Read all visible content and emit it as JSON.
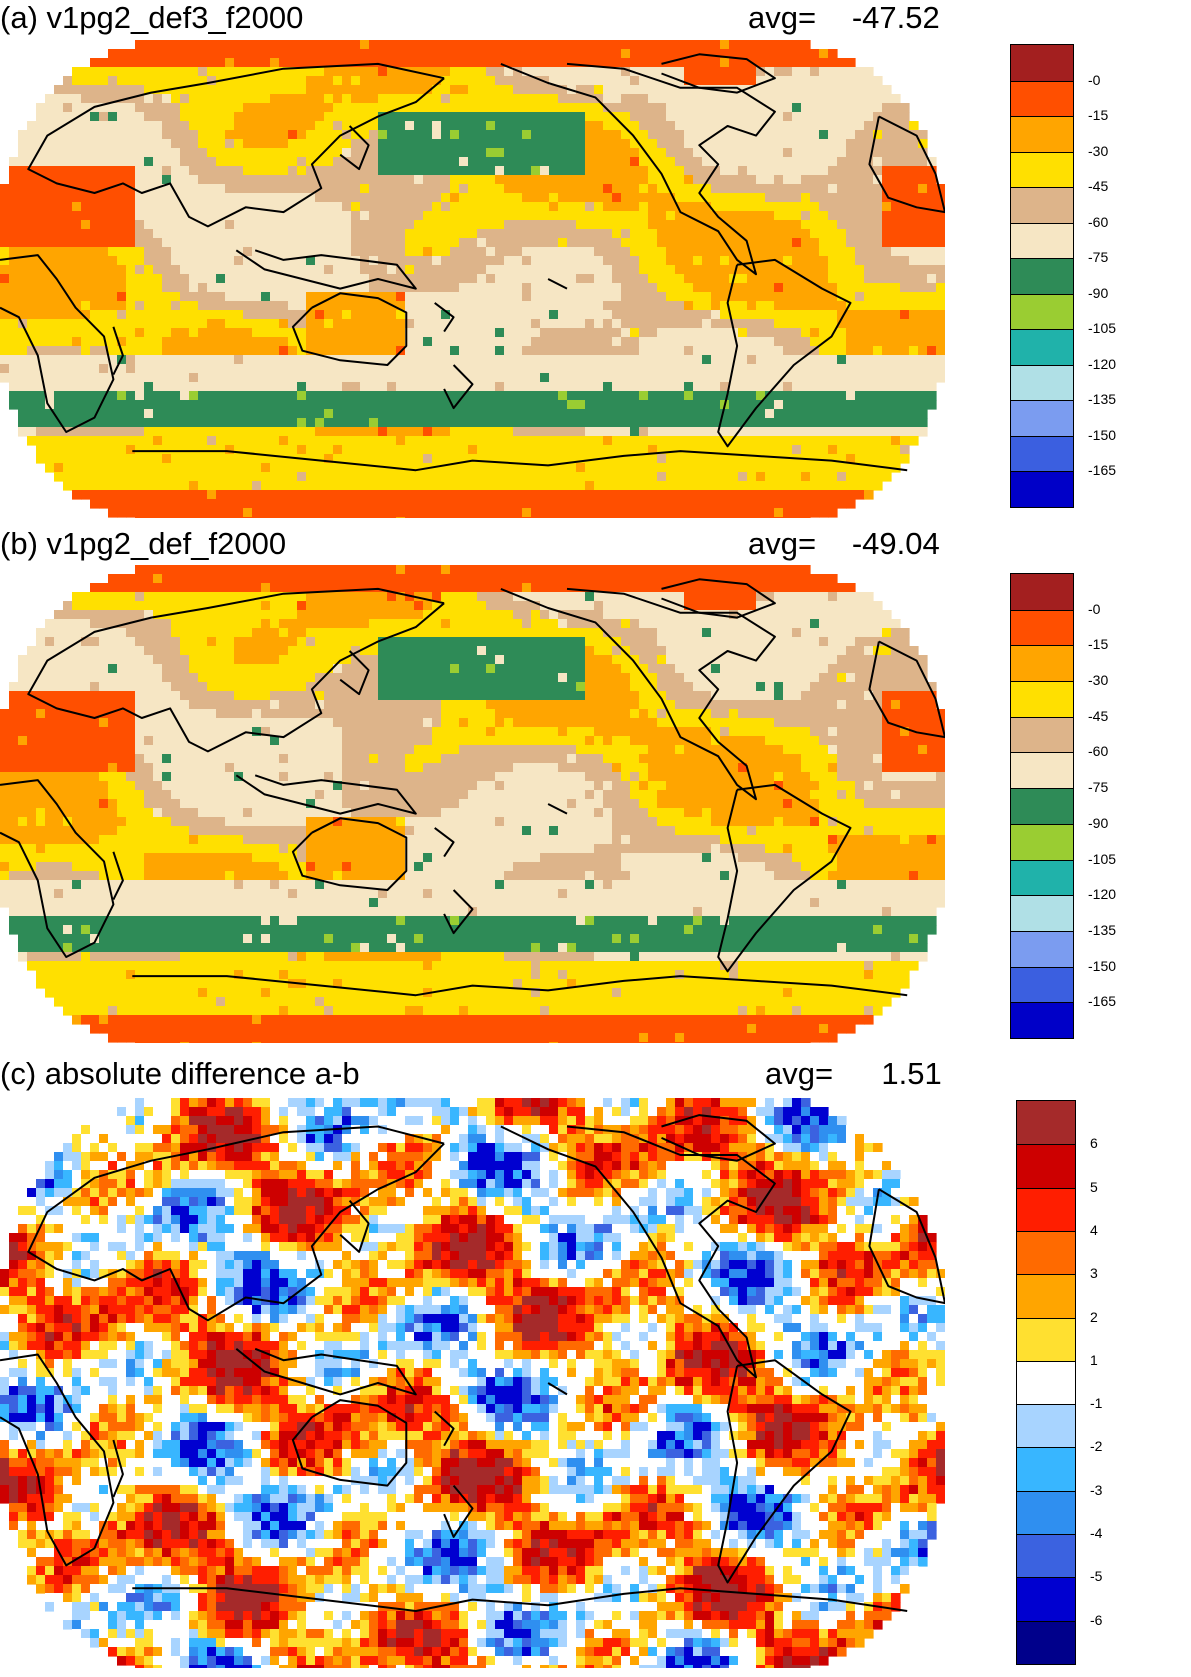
{
  "panels": [
    {
      "id": "a",
      "title": "(a) v1pg2_def3_f2000",
      "avg_label": "avg=",
      "avg_value": "-47.52",
      "palette": [
        "#a31f1f",
        "#ff4f00",
        "#ffa500",
        "#ffe000",
        "#ddb48a",
        "#f6e6c4",
        "#2e8b57",
        "#9acd32",
        "#20b2aa",
        "#b0e0e6",
        "#7b9cf0",
        "#3b5fe0",
        "#0000c8"
      ],
      "level_labels": [
        "-0",
        "-15",
        "-30",
        "-45",
        "-60",
        "-75",
        "-90",
        "-105",
        "-120",
        "-135",
        "-150",
        "-165"
      ]
    },
    {
      "id": "b",
      "title": "(b) v1pg2_def_f2000",
      "avg_label": "avg=",
      "avg_value": "-49.04",
      "palette": [
        "#a31f1f",
        "#ff4f00",
        "#ffa500",
        "#ffe000",
        "#ddb48a",
        "#f6e6c4",
        "#2e8b57",
        "#9acd32",
        "#20b2aa",
        "#b0e0e6",
        "#7b9cf0",
        "#3b5fe0",
        "#0000c8"
      ],
      "level_labels": [
        "-0",
        "-15",
        "-30",
        "-45",
        "-60",
        "-75",
        "-90",
        "-105",
        "-120",
        "-135",
        "-150",
        "-165"
      ]
    },
    {
      "id": "c",
      "title": "(c) absolute difference a-b",
      "avg_label": "avg=",
      "avg_value": "1.51",
      "palette": [
        "#a52a2a",
        "#cd0000",
        "#ff1e00",
        "#ff6a00",
        "#ffa500",
        "#ffe030",
        "#ffffff",
        "#a8d4ff",
        "#38b6ff",
        "#2f8ff0",
        "#3b62e0",
        "#0000d0",
        "#00008b"
      ],
      "level_labels": [
        "6",
        "5",
        "4",
        "3",
        "2",
        "1",
        "-1",
        "-2",
        "-3",
        "-4",
        "-5",
        "-6"
      ]
    }
  ]
}
